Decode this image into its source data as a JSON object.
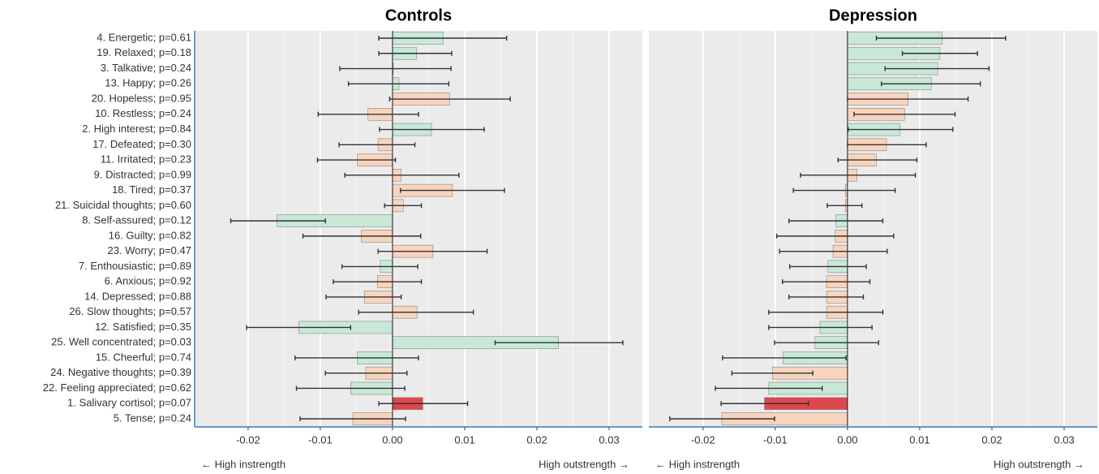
{
  "chart_data": [
    {
      "type": "bar",
      "title": "Controls",
      "categories": [
        "4. Energetic; p=0.61",
        "19. Relaxed; p=0.18",
        "3. Talkative; p=0.24",
        "13. Happy; p=0.26",
        "20. Hopeless; p=0.95",
        "10. Restless; p=0.24",
        "2. High interest; p=0.84",
        "17. Defeated; p=0.30",
        "11. Irritated; p=0.23",
        "9. Distracted; p=0.99",
        "18. Tired; p=0.37",
        "21. Suicidal thoughts; p=0.60",
        "8. Self-assured; p=0.12",
        "16. Guilty; p=0.82",
        "23. Worry; p=0.47",
        "7. Enthousiastic; p=0.89",
        "6. Anxious; p=0.92",
        "14. Depressed; p=0.88",
        "26. Slow thoughts; p=0.57",
        "12. Satisfied; p=0.35",
        "25. Well concentrated; p=0.03",
        "15. Cheerful; p=0.74",
        "24. Negative thoughts; p=0.39",
        "22. Feeling appreciated; p=0.62",
        "1. Salivary cortisol; p=0.07",
        "5. Tense; p=0.24"
      ],
      "colors": [
        "#c8e8d8",
        "#c8e8d8",
        "#c8e8d8",
        "#c8e8d8",
        "#f8d4bd",
        "#f8d4bd",
        "#c8e8d8",
        "#f8d4bd",
        "#f8d4bd",
        "#f8d4bd",
        "#f8d4bd",
        "#f8d4bd",
        "#c8e8d8",
        "#f8d4bd",
        "#f8d4bd",
        "#c8e8d8",
        "#f8d4bd",
        "#f8d4bd",
        "#f8d4bd",
        "#c8e8d8",
        "#c8e8d8",
        "#c8e8d8",
        "#f8d4bd",
        "#c8e8d8",
        "#e0474c",
        "#f8d4bd"
      ],
      "values": [
        0.007,
        0.0033,
        0.0001,
        0.0009,
        0.0079,
        -0.0034,
        0.0054,
        -0.002,
        -0.0049,
        0.0012,
        0.0083,
        0.0015,
        -0.016,
        -0.0043,
        0.0056,
        -0.0017,
        -0.0021,
        -0.0039,
        0.0034,
        -0.013,
        0.023,
        -0.0049,
        -0.0037,
        -0.0058,
        0.0042,
        -0.0055
      ],
      "lower": [
        -0.0019,
        -0.0019,
        -0.0073,
        -0.0061,
        -0.0004,
        -0.0103,
        -0.0018,
        -0.0074,
        -0.0104,
        -0.0066,
        0.0011,
        -0.0011,
        -0.0224,
        -0.0124,
        -0.002,
        -0.007,
        -0.0082,
        -0.0092,
        -0.0047,
        -0.0202,
        0.0142,
        -0.0135,
        -0.0093,
        -0.0133,
        -0.0019,
        -0.0128
      ],
      "upper": [
        0.0158,
        0.0082,
        0.0081,
        0.0078,
        0.0163,
        0.0036,
        0.0127,
        0.0031,
        0.0004,
        0.0092,
        0.0155,
        0.004,
        -0.0093,
        0.0039,
        0.0131,
        0.0035,
        0.004,
        0.0012,
        0.0112,
        -0.0058,
        0.0319,
        0.0036,
        0.002,
        0.0017,
        0.0104,
        0.0018
      ],
      "xlim": [
        -0.0274,
        0.0346
      ],
      "xticks": [
        -0.02,
        -0.01,
        {
          "value": 0,
          "label": "0.00"
        },
        0.01,
        0.02,
        0.03
      ],
      "xlabel_left": "← High instrength",
      "xlabel_right": "High outstrength →",
      "grid": true
    },
    {
      "type": "bar",
      "title": "Depression",
      "colors": [
        "#c8e8d8",
        "#c8e8d8",
        "#c8e8d8",
        "#c8e8d8",
        "#f8d4bd",
        "#f8d4bd",
        "#c8e8d8",
        "#f8d4bd",
        "#f8d4bd",
        "#f8d4bd",
        "#f8d4bd",
        "#f8d4bd",
        "#c8e8d8",
        "#f8d4bd",
        "#f8d4bd",
        "#c8e8d8",
        "#f8d4bd",
        "#f8d4bd",
        "#f8d4bd",
        "#c8e8d8",
        "#c8e8d8",
        "#c8e8d8",
        "#f8d4bd",
        "#c8e8d8",
        "#e0474c",
        "#f8d4bd"
      ],
      "values": [
        0.0131,
        0.0128,
        0.0125,
        0.0116,
        0.0084,
        0.0079,
        0.0073,
        0.0054,
        0.004,
        0.0013,
        -0.0003,
        -0.0003,
        -0.0016,
        -0.0017,
        -0.002,
        -0.0027,
        -0.0029,
        -0.0029,
        -0.0029,
        -0.0038,
        -0.0045,
        -0.0089,
        -0.0104,
        -0.0109,
        -0.0115,
        -0.0174
      ],
      "lower": [
        0.004,
        0.0076,
        0.0052,
        0.0047,
        0.0,
        0.0009,
        0.0001,
        0.0,
        -0.0013,
        -0.0065,
        -0.0075,
        -0.0028,
        -0.0081,
        -0.0098,
        -0.0094,
        -0.008,
        -0.009,
        -0.0081,
        -0.0109,
        -0.0109,
        -0.0101,
        -0.0173,
        -0.016,
        -0.0183,
        -0.0175,
        -0.0246
      ],
      "upper": [
        0.0219,
        0.018,
        0.0196,
        0.0184,
        0.0167,
        0.0149,
        0.0146,
        0.0109,
        0.0096,
        0.0094,
        0.0066,
        0.002,
        0.0049,
        0.0064,
        0.0055,
        0.0026,
        0.0031,
        0.0022,
        0.0049,
        0.0034,
        0.0043,
        -0.0002,
        -0.0048,
        -0.0035,
        -0.0054,
        -0.0101
      ],
      "xlim": [
        -0.0275,
        0.0346
      ],
      "xticks": [
        -0.02,
        -0.01,
        {
          "value": 0,
          "label": "0.00"
        },
        0.01,
        0.02,
        0.03
      ],
      "xlabel_left": "← High instrength",
      "xlabel_right": "High outstrength →",
      "grid": true
    }
  ]
}
